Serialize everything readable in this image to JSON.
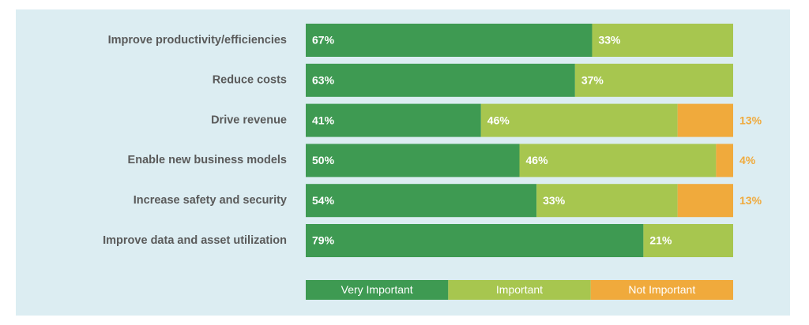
{
  "chart_data": {
    "type": "stacked-bar-horizontal",
    "categories": [
      "Improve productivity/efficiencies",
      "Reduce costs",
      "Drive revenue",
      "Enable new business models",
      "Increase safety and security",
      "Improve data and asset utilization"
    ],
    "series": [
      {
        "name": "Very Important",
        "color": "#3e9a52",
        "values": [
          67,
          63,
          41,
          50,
          54,
          79
        ],
        "value_labels": [
          "67%",
          "63%",
          "41%",
          "50%",
          "54%",
          "79%"
        ]
      },
      {
        "name": "Important",
        "color": "#a7c64f",
        "values": [
          33,
          37,
          46,
          46,
          33,
          21
        ],
        "value_labels": [
          "33%",
          "37%",
          "46%",
          "46%",
          "33%",
          "21%"
        ]
      },
      {
        "name": "Not Important",
        "color": "#f0aa3c",
        "values": [
          null,
          null,
          13,
          4,
          13,
          null
        ],
        "value_labels": [
          null,
          null,
          "13%",
          "4%",
          "13%",
          null
        ]
      }
    ],
    "xlim": [
      0,
      100
    ]
  }
}
